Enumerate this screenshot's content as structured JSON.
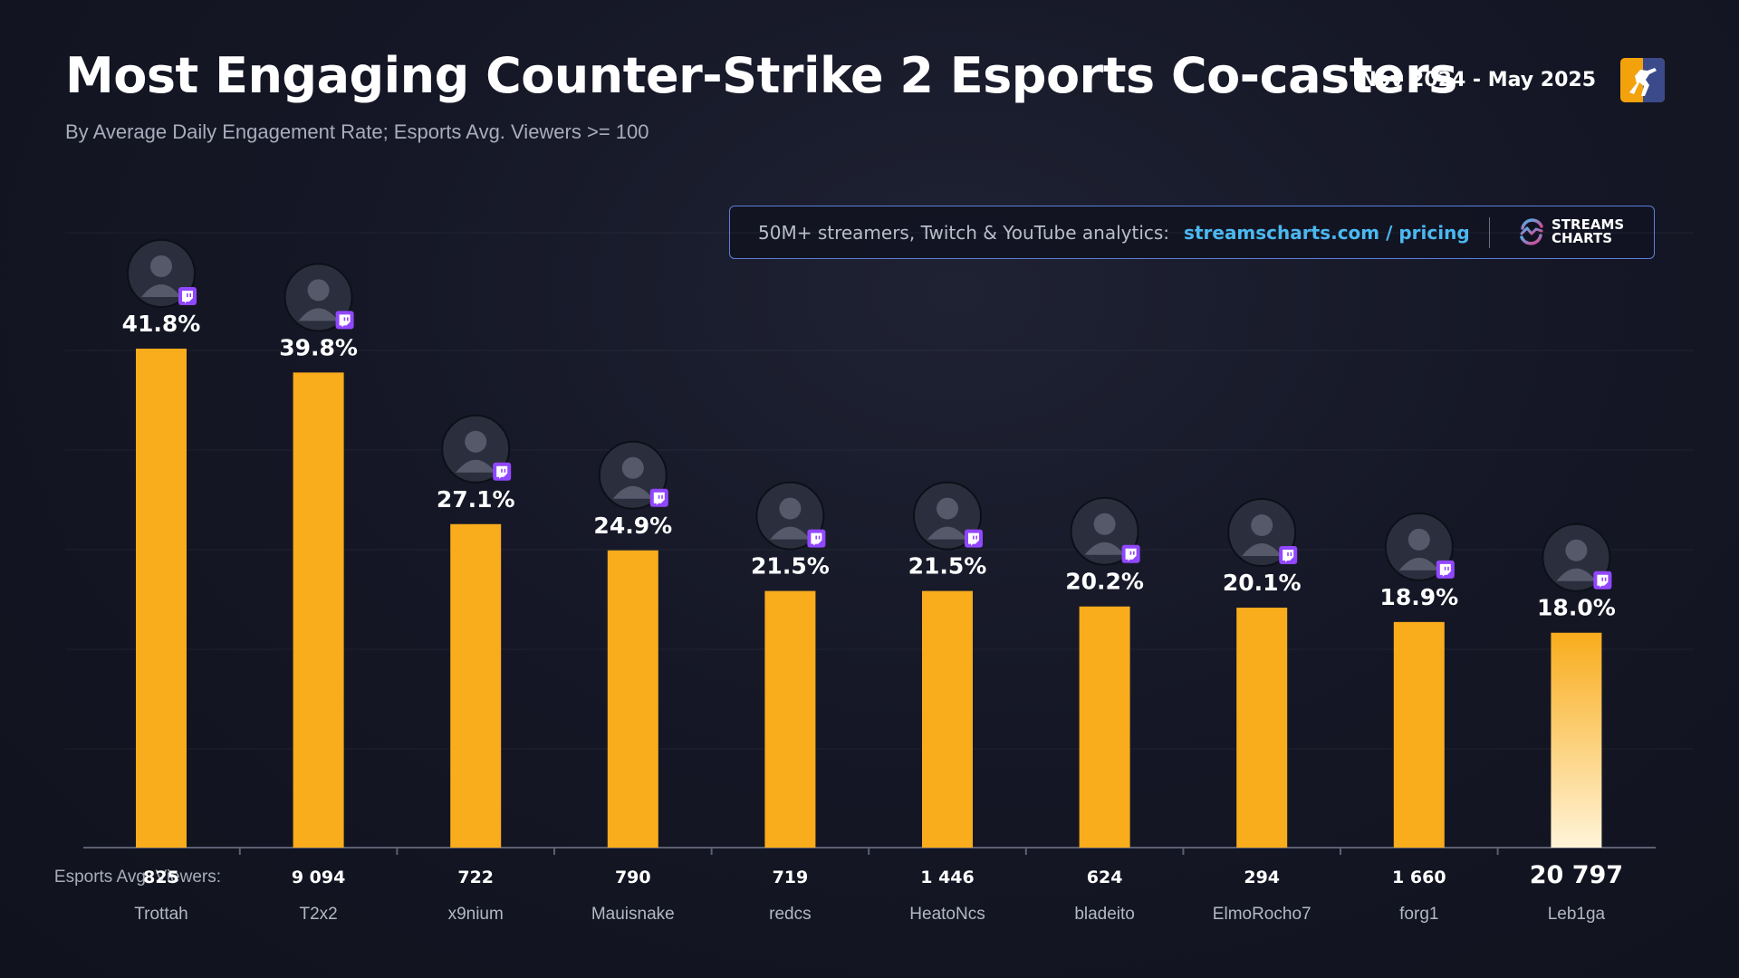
{
  "header": {
    "title": "Most Engaging Counter-Strike 2 Esports Co-casters",
    "subtitle": "By Average Daily Engagement Rate; Esports Avg. Viewers >= 100",
    "period": "Nov 2024 - May 2025"
  },
  "promo": {
    "text": "50M+ streamers, Twitch & YouTube analytics:",
    "link": "streamscharts.com / pricing",
    "brand_line1": "STREAMS",
    "brand_line2": "CHARTS"
  },
  "colors": {
    "bar": "#f9ac1c",
    "bar_highlight_top": "#f9ac1c",
    "bar_highlight_bottom": "#fff4d8",
    "twitch": "#9147ff",
    "link": "#4ab8f0"
  },
  "chart_data": {
    "type": "bar",
    "title": "Most Engaging Counter-Strike 2 Esports Co-casters",
    "ylabel": "",
    "xlabel": "",
    "ylim": [
      0,
      45
    ],
    "grid": true,
    "viewers_label": "Esports Avg. Viewers:",
    "categories": [
      "Trottah",
      "T2x2",
      "x9nium",
      "Mauisnake",
      "redcs",
      "HeatoNcs",
      "bladeito",
      "ElmoRocho7",
      "forg1",
      "Leb1ga"
    ],
    "values": [
      41.8,
      39.8,
      27.1,
      24.9,
      21.5,
      21.5,
      20.2,
      20.1,
      18.9,
      18.0
    ],
    "value_labels": [
      "41.8%",
      "39.8%",
      "27.1%",
      "24.9%",
      "21.5%",
      "21.5%",
      "20.2%",
      "20.1%",
      "18.9%",
      "18.0%"
    ],
    "viewers": [
      "825",
      "9 094",
      "722",
      "790",
      "719",
      "1 446",
      "624",
      "294",
      "1 660",
      "20 797"
    ],
    "highlighted_index": 9,
    "platform": "twitch"
  }
}
